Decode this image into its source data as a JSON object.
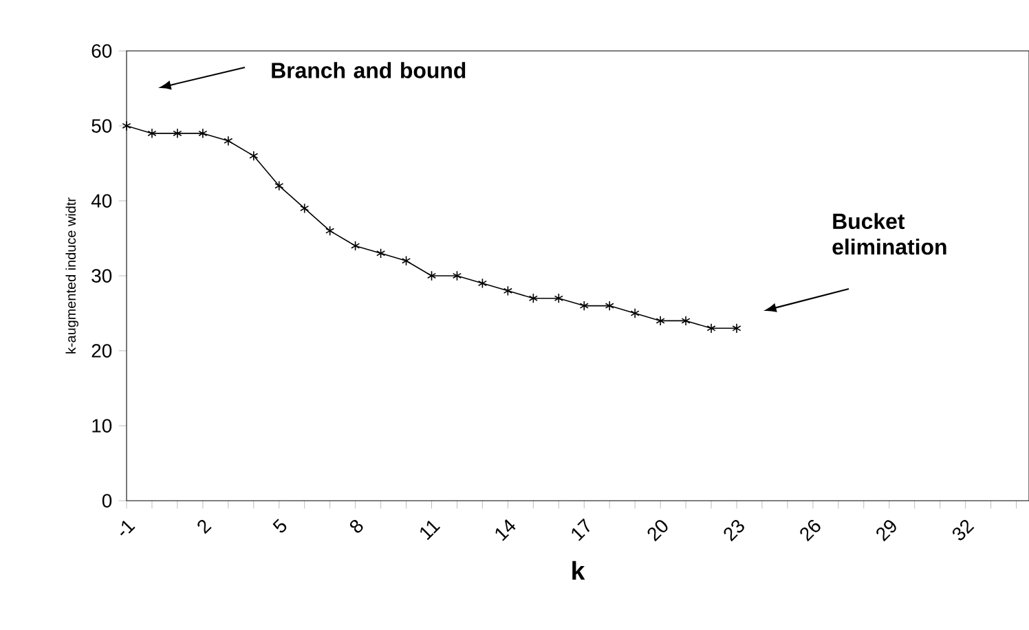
{
  "chart_data": {
    "type": "line",
    "xlabel": "k",
    "ylabel": "k-augmented induce widtr",
    "x": [
      -1,
      0,
      1,
      2,
      3,
      4,
      5,
      6,
      7,
      8,
      9,
      10,
      11,
      12,
      13,
      14,
      15,
      16,
      17,
      18,
      19,
      20,
      21,
      22,
      23
    ],
    "series": [
      {
        "color": "#000000",
        "values": [
          50,
          49,
          49,
          49,
          48,
          46,
          42,
          39,
          36,
          34,
          33,
          32,
          30,
          30,
          29,
          28,
          27,
          27,
          26,
          26,
          25,
          24,
          24,
          23,
          23
        ]
      }
    ],
    "xlim": [
      -1,
      34.5
    ],
    "xticks": [
      -1,
      {
        "value": 0,
        "label": null
      },
      {
        "value": 1,
        "label": null
      },
      2,
      {
        "value": 3,
        "label": null
      },
      {
        "value": 4,
        "label": null
      },
      5,
      {
        "value": 6,
        "label": null
      },
      {
        "value": 7,
        "label": null
      },
      8,
      {
        "value": 9,
        "label": null
      },
      {
        "value": 10,
        "label": null
      },
      11,
      {
        "value": 12,
        "label": null
      },
      {
        "value": 13,
        "label": null
      },
      14,
      {
        "value": 15,
        "label": null
      },
      {
        "value": 16,
        "label": null
      },
      17,
      {
        "value": 18,
        "label": null
      },
      {
        "value": 19,
        "label": null
      },
      20,
      {
        "value": 21,
        "label": null
      },
      {
        "value": 22,
        "label": null
      },
      23,
      {
        "value": 24,
        "label": null
      },
      {
        "value": 25,
        "label": null
      },
      26,
      {
        "value": 27,
        "label": null
      },
      {
        "value": 28,
        "label": null
      },
      29,
      {
        "value": 30,
        "label": null
      },
      {
        "value": 31,
        "label": null
      },
      32,
      {
        "value": 33,
        "label": null
      },
      {
        "value": 34,
        "label": null
      }
    ],
    "ylim": [
      0,
      60
    ],
    "yticks": [
      0,
      10,
      20,
      30,
      40,
      50,
      60
    ],
    "annotations": [
      "Branch and bound",
      "Bucket elimination"
    ],
    "marker": "cross",
    "line_style": "solid",
    "grid": false
  }
}
